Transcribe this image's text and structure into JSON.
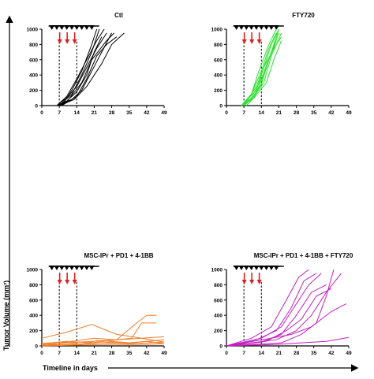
{
  "figure": {
    "y_axis_title": "Tumor Volume (mm³)",
    "x_axis_title": "Timeline in days"
  },
  "chart_data": [
    {
      "type": "line",
      "title": "Ctl",
      "xlim": [
        0,
        49
      ],
      "ylim": [
        0,
        1000
      ],
      "x_ticks": [
        0,
        7,
        14,
        21,
        28,
        35,
        42,
        49
      ],
      "y_ticks": [
        0,
        200,
        400,
        600,
        800,
        1000
      ],
      "line_color": "#000000",
      "treatment_days": [
        4,
        7,
        10
      ],
      "dashed_lines_days": [
        7,
        14
      ],
      "dosing_days": [
        4,
        6,
        8,
        10,
        12,
        14,
        16,
        18,
        20
      ],
      "series": [
        {
          "x": [
            6,
            10,
            14,
            18,
            22,
            26
          ],
          "y": [
            0,
            100,
            250,
            500,
            750,
            950
          ]
        },
        {
          "x": [
            6,
            10,
            14,
            18,
            22,
            25
          ],
          "y": [
            0,
            120,
            350,
            600,
            850,
            1000
          ]
        },
        {
          "x": [
            6,
            12,
            16,
            20,
            24,
            28
          ],
          "y": [
            0,
            80,
            200,
            450,
            700,
            950
          ]
        },
        {
          "x": [
            7,
            12,
            16,
            20,
            23
          ],
          "y": [
            0,
            150,
            400,
            700,
            1000
          ]
        },
        {
          "x": [
            6,
            10,
            14,
            18,
            21,
            24
          ],
          "y": [
            0,
            60,
            180,
            400,
            700,
            900
          ]
        },
        {
          "x": [
            8,
            12,
            16,
            20,
            22
          ],
          "y": [
            0,
            200,
            450,
            800,
            1000
          ]
        },
        {
          "x": [
            7,
            13,
            18,
            24,
            28,
            33
          ],
          "y": [
            0,
            80,
            250,
            550,
            800,
            950
          ]
        },
        {
          "x": [
            6,
            10,
            16,
            20,
            26,
            29
          ],
          "y": [
            0,
            50,
            300,
            600,
            850,
            950
          ]
        },
        {
          "x": [
            8,
            14,
            18,
            22,
            26,
            30
          ],
          "y": [
            0,
            120,
            350,
            650,
            800,
            900
          ]
        }
      ]
    },
    {
      "type": "line",
      "title": "FTY720",
      "xlim": [
        0,
        49
      ],
      "ylim": [
        0,
        1000
      ],
      "x_ticks": [
        0,
        7,
        14,
        21,
        28,
        35,
        42,
        49
      ],
      "y_ticks": [
        0,
        200,
        400,
        600,
        800,
        1000
      ],
      "line_color": "#2ee02e",
      "treatment_days": [
        4,
        7,
        10
      ],
      "dashed_lines_days": [
        7,
        14
      ],
      "dosing_days": [
        4,
        6,
        8,
        10,
        12,
        14,
        16,
        18,
        20
      ],
      "series": [
        {
          "x": [
            6,
            10,
            14,
            18,
            21
          ],
          "y": [
            0,
            100,
            350,
            700,
            950
          ]
        },
        {
          "x": [
            6,
            10,
            13,
            17,
            20
          ],
          "y": [
            0,
            150,
            450,
            800,
            1000
          ]
        },
        {
          "x": [
            7,
            11,
            15,
            18,
            22
          ],
          "y": [
            0,
            120,
            300,
            650,
            950
          ]
        },
        {
          "x": [
            6,
            12,
            15,
            19,
            22
          ],
          "y": [
            0,
            200,
            500,
            750,
            900
          ]
        },
        {
          "x": [
            7,
            10,
            14,
            17,
            20
          ],
          "y": [
            0,
            80,
            280,
            600,
            850
          ]
        },
        {
          "x": [
            8,
            11,
            15,
            18,
            21
          ],
          "y": [
            0,
            100,
            400,
            700,
            1000
          ]
        },
        {
          "x": [
            6,
            10,
            14,
            17,
            20
          ],
          "y": [
            0,
            150,
            450,
            750,
            950
          ]
        },
        {
          "x": [
            7,
            12,
            15,
            18,
            21
          ],
          "y": [
            0,
            250,
            500,
            800,
            1000
          ]
        },
        {
          "x": [
            6,
            11,
            16,
            19,
            22
          ],
          "y": [
            0,
            100,
            300,
            600,
            850
          ]
        }
      ]
    },
    {
      "type": "line",
      "title": "MSC-IPr + PD1 + 4-1BB",
      "xlim": [
        0,
        49
      ],
      "ylim": [
        0,
        1000
      ],
      "x_ticks": [
        0,
        7,
        14,
        21,
        28,
        35,
        42,
        49
      ],
      "y_ticks": [
        0,
        200,
        400,
        600,
        800,
        1000
      ],
      "line_color": "#f07d28",
      "treatment_days": [
        4,
        7,
        10
      ],
      "dashed_lines_days": [
        7,
        14
      ],
      "dosing_days": [
        4,
        6,
        8,
        10,
        12,
        14,
        16,
        18,
        20
      ],
      "series": [
        {
          "x": [
            0,
            10,
            20,
            30,
            40,
            49
          ],
          "y": [
            100,
            180,
            280,
            150,
            100,
            50
          ]
        },
        {
          "x": [
            0,
            10,
            21,
            30,
            38,
            42,
            46
          ],
          "y": [
            0,
            50,
            100,
            80,
            300,
            400,
            400
          ]
        },
        {
          "x": [
            0,
            10,
            20,
            30,
            36,
            40,
            46
          ],
          "y": [
            30,
            60,
            40,
            80,
            100,
            300,
            300
          ]
        },
        {
          "x": [
            0,
            10,
            20,
            30,
            40,
            49
          ],
          "y": [
            20,
            40,
            60,
            80,
            100,
            120
          ]
        },
        {
          "x": [
            0,
            8,
            16,
            22,
            28,
            35,
            42,
            49
          ],
          "y": [
            30,
            50,
            20,
            70,
            60,
            40,
            60,
            80
          ]
        },
        {
          "x": [
            0,
            10,
            20,
            28,
            35,
            42,
            49
          ],
          "y": [
            10,
            20,
            30,
            50,
            40,
            60,
            30
          ]
        },
        {
          "x": [
            0,
            12,
            24,
            36,
            49
          ],
          "y": [
            0,
            20,
            40,
            30,
            50
          ]
        },
        {
          "x": [
            0,
            14,
            28,
            42,
            49
          ],
          "y": [
            0,
            10,
            20,
            20,
            30
          ]
        }
      ]
    },
    {
      "type": "line",
      "title": "MSC-IPr + PD1 + 4-1BB + FTY720",
      "xlim": [
        0,
        49
      ],
      "ylim": [
        0,
        1000
      ],
      "x_ticks": [
        0,
        7,
        14,
        21,
        28,
        35,
        42,
        49
      ],
      "y_ticks": [
        0,
        200,
        400,
        600,
        800,
        1000
      ],
      "line_color": "#c020c0",
      "treatment_days": [
        4,
        7,
        10
      ],
      "dashed_lines_days": [
        7,
        14
      ],
      "dosing_days": [
        4,
        6,
        8,
        10,
        12,
        14,
        16,
        18,
        20
      ],
      "series": [
        {
          "x": [
            0,
            10,
            18,
            24,
            29,
            33
          ],
          "y": [
            0,
            100,
            250,
            600,
            900,
            1000
          ]
        },
        {
          "x": [
            0,
            12,
            20,
            26,
            31,
            36
          ],
          "y": [
            0,
            80,
            200,
            500,
            850,
            950
          ]
        },
        {
          "x": [
            0,
            14,
            22,
            28,
            33,
            38
          ],
          "y": [
            0,
            100,
            250,
            550,
            800,
            950
          ]
        },
        {
          "x": [
            0,
            14,
            22,
            28,
            34,
            40
          ],
          "y": [
            0,
            50,
            150,
            400,
            700,
            800
          ]
        },
        {
          "x": [
            0,
            16,
            24,
            30,
            36,
            42
          ],
          "y": [
            0,
            60,
            200,
            350,
            650,
            750
          ]
        },
        {
          "x": [
            0,
            20,
            28,
            34,
            40,
            46
          ],
          "y": [
            0,
            80,
            200,
            400,
            700,
            950
          ]
        },
        {
          "x": [
            0,
            18,
            26,
            34,
            42,
            48
          ],
          "y": [
            0,
            100,
            150,
            250,
            450,
            550
          ]
        },
        {
          "x": [
            0,
            22,
            30,
            36,
            40,
            43
          ],
          "y": [
            0,
            40,
            150,
            300,
            650,
            1000
          ]
        },
        {
          "x": [
            0,
            20,
            30,
            40,
            49
          ],
          "y": [
            0,
            20,
            40,
            60,
            110
          ]
        }
      ]
    }
  ]
}
